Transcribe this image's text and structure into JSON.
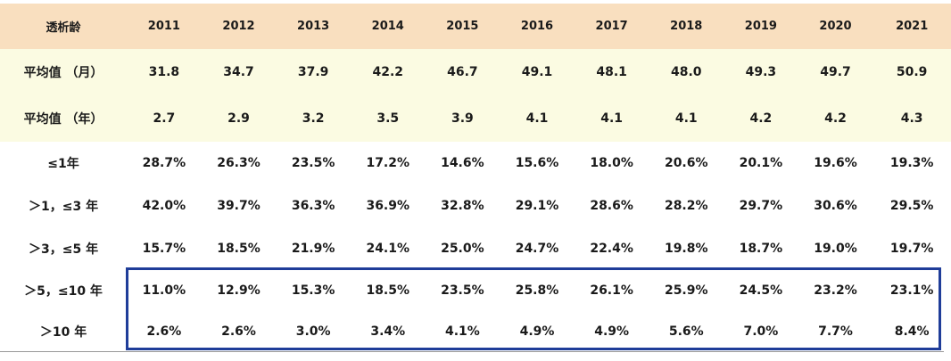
{
  "header": {
    "label": "透析龄",
    "years": [
      "2011",
      "2012",
      "2013",
      "2014",
      "2015",
      "2016",
      "2017",
      "2018",
      "2019",
      "2020",
      "2021"
    ]
  },
  "avg_rows": [
    {
      "label": "平均值 （月）",
      "values": [
        "31.8",
        "34.7",
        "37.9",
        "42.2",
        "46.7",
        "49.1",
        "48.1",
        "48.0",
        "49.3",
        "49.7",
        "50.9"
      ]
    },
    {
      "label": "平均值 （年）",
      "values": [
        "2.7",
        "2.9",
        "3.2",
        "3.5",
        "3.9",
        "4.1",
        "4.1",
        "4.1",
        "4.2",
        "4.2",
        "4.3"
      ]
    }
  ],
  "dist_rows": [
    {
      "label": "≤1年",
      "values": [
        "28.7%",
        "26.3%",
        "23.5%",
        "17.2%",
        "14.6%",
        "15.6%",
        "18.0%",
        "20.6%",
        "20.1%",
        "19.6%",
        "19.3%"
      ]
    },
    {
      "label": "＞1，≤3 年",
      "values": [
        "42.0%",
        "39.7%",
        "36.3%",
        "36.9%",
        "32.8%",
        "29.1%",
        "28.6%",
        "28.2%",
        "29.7%",
        "30.6%",
        "29.5%"
      ]
    },
    {
      "label": "＞3，≤5 年",
      "values": [
        "15.7%",
        "18.5%",
        "21.9%",
        "24.1%",
        "25.0%",
        "24.7%",
        "22.4%",
        "19.8%",
        "18.7%",
        "19.0%",
        "19.7%"
      ]
    }
  ],
  "highlight_rows": [
    {
      "label": "＞5，≤10 年",
      "values": [
        "11.0%",
        "12.9%",
        "15.3%",
        "18.5%",
        "23.5%",
        "25.8%",
        "26.1%",
        "25.9%",
        "24.5%",
        "23.2%",
        "23.1%"
      ]
    },
    {
      "label": "＞10 年",
      "values": [
        "2.6%",
        "2.6%",
        "3.0%",
        "3.4%",
        "4.1%",
        "4.9%",
        "4.9%",
        "5.6%",
        "7.0%",
        "7.7%",
        "8.4%"
      ]
    }
  ],
  "colors": {
    "header_bg": "#f9dfbf",
    "avg_bg": "#fbfbe2",
    "highlight_text": "#d21f1f",
    "highlight_border": "#1f3d99"
  }
}
